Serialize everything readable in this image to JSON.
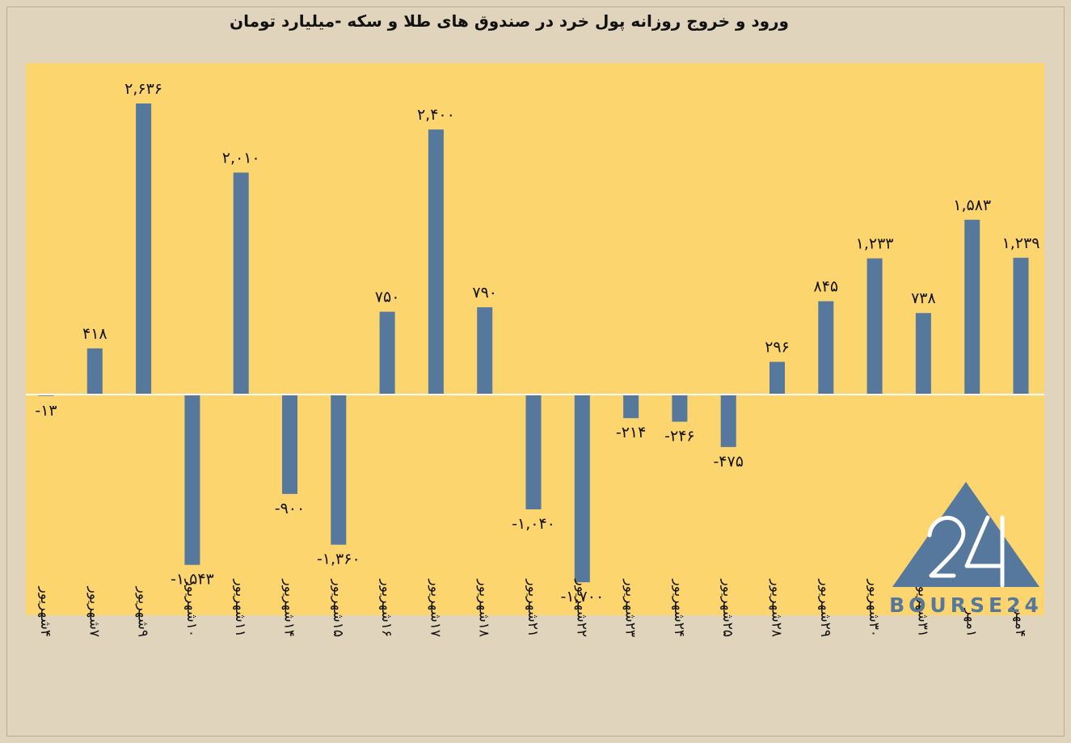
{
  "colors": {
    "page_background": "#e0d5bc",
    "plot_background": "#fcd56e",
    "bar": "#55789c",
    "logo": "#55789c"
  },
  "logo": {
    "text": "BOURSE24",
    "mark": "24"
  },
  "chart_data": {
    "type": "bar",
    "title": "ورود و خروج روزانه پول خرد در صندوق های طلا و سکه -میلیارد تومان",
    "categories": [
      "۴شهریور",
      "۷شهریور",
      "۹شهریور",
      "۱۰شهریور",
      "۱۱شهریور",
      "۱۴شهریور",
      "۱۵شهریور",
      "۱۶شهریور",
      "۱۷شهریور",
      "۱۸شهریور",
      "۲۱شهریور",
      "۲۲شهریور",
      "۲۳شهریور",
      "۲۴شهریور",
      "۲۵شهریور",
      "۲۸شهریور",
      "۲۹شهریور",
      "۳۰شهریور",
      "۳۱شهریور",
      "۱مهر",
      "۴مهر"
    ],
    "values": [
      -13,
      418,
      2636,
      -1543,
      2010,
      -900,
      -1360,
      750,
      2400,
      790,
      -1040,
      -1700,
      -214,
      -246,
      -475,
      296,
      845,
      1233,
      738,
      1583,
      1239
    ],
    "data_labels": [
      "-۱۳",
      "۴۱۸",
      "۲,۶۳۶",
      "-۱,۵۴۳",
      "۲,۰۱۰",
      "-۹۰۰",
      "-۱,۳۶۰",
      "۷۵۰",
      "۲,۴۰۰",
      "۷۹۰",
      "-۱,۰۴۰",
      "-۱,۷۰۰",
      "-۲۱۴",
      "-۲۴۶",
      "-۴۷۵",
      "۲۹۶",
      "۸۴۵",
      "۱,۲۳۳",
      "۷۳۸",
      "۱,۵۸۳",
      "۱,۲۳۹"
    ],
    "ylim": [
      -2000,
      2900
    ],
    "grid": false,
    "legend": "none",
    "xlabel": "",
    "ylabel": ""
  }
}
